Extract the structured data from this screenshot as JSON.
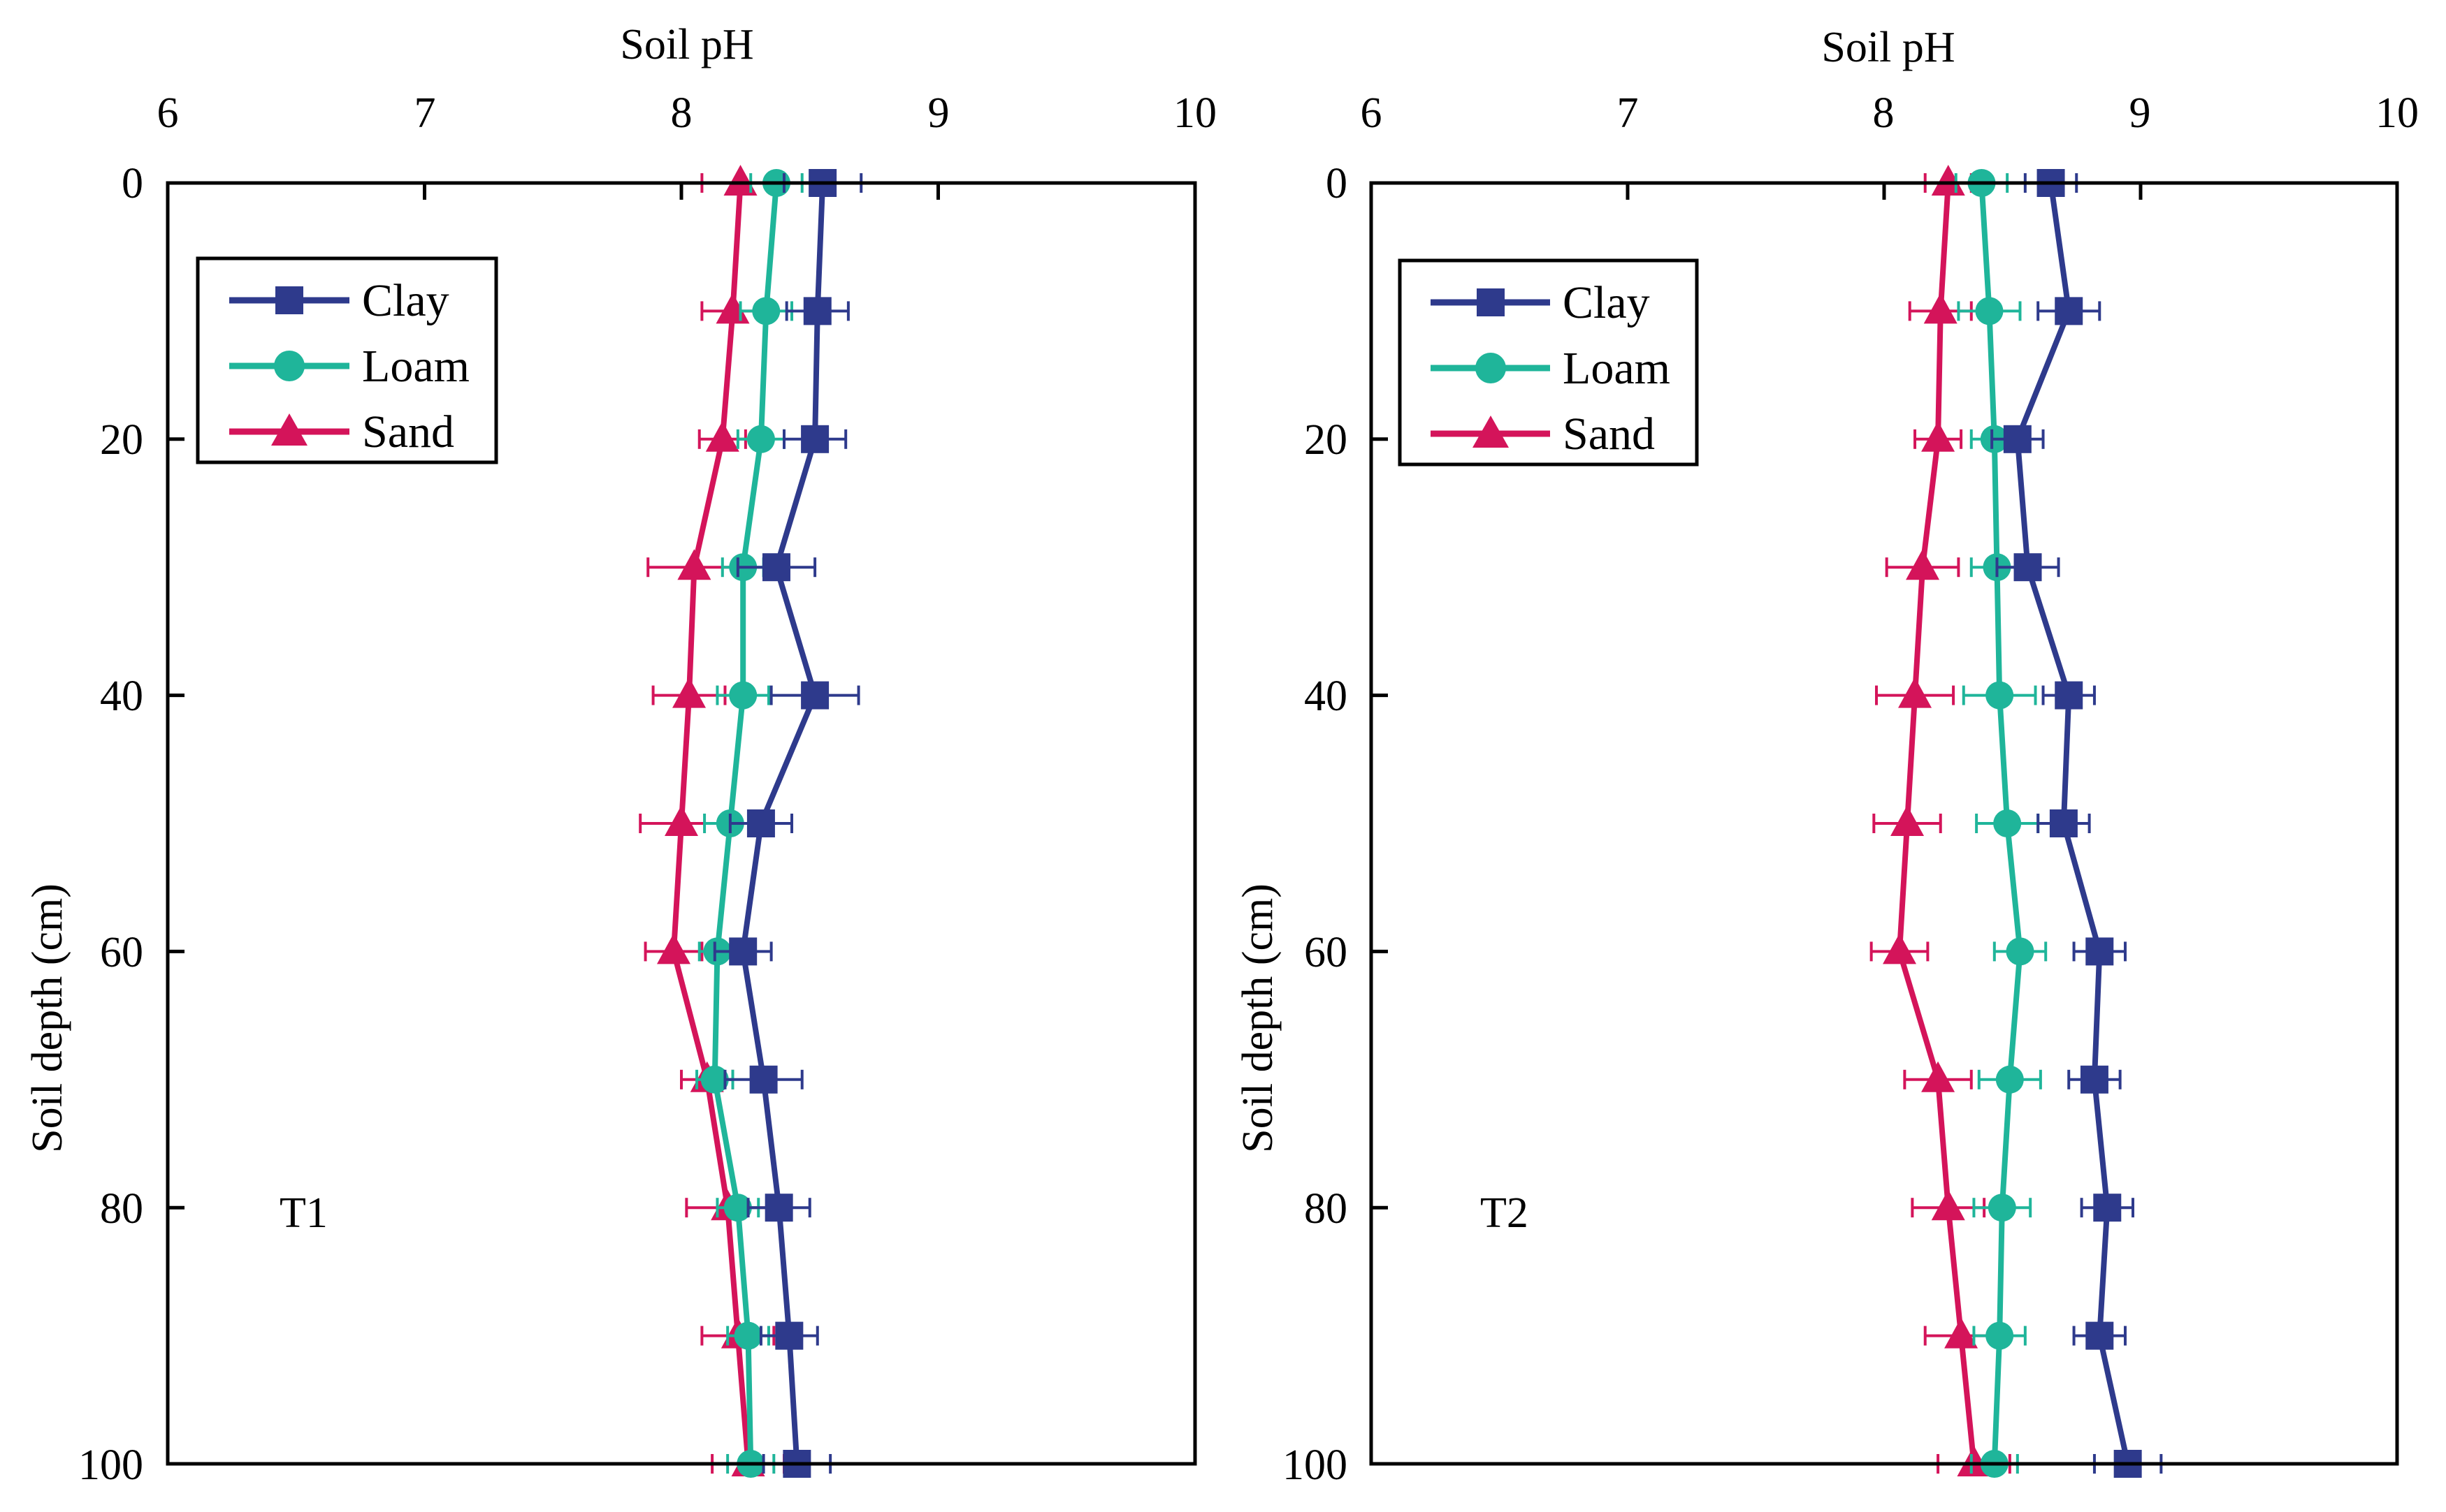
{
  "colors": {
    "Clay": "#2e3a8c",
    "Loam": "#1fb59a",
    "Sand": "#d4145a"
  },
  "chart_data": [
    {
      "type": "line",
      "panel_label": "T1",
      "xlabel": "Soil pH",
      "ylabel": "Soil depth (cm)",
      "xlim": [
        6,
        10
      ],
      "ylim": [
        0,
        100
      ],
      "x_ticks": [
        "6",
        "7",
        "8",
        "9",
        "10"
      ],
      "y_ticks": [
        "0",
        "20",
        "40",
        "60",
        "80",
        "100"
      ],
      "legend": [
        "Clay",
        "Loam",
        "Sand"
      ],
      "legend_position": "top-left",
      "depths": [
        0,
        10,
        20,
        30,
        40,
        50,
        60,
        70,
        80,
        90,
        100
      ],
      "series": [
        {
          "name": "Clay",
          "marker": "square",
          "values": [
            8.55,
            8.53,
            8.52,
            8.37,
            8.52,
            8.31,
            8.24,
            8.32,
            8.38,
            8.42,
            8.45
          ],
          "errors": [
            0.15,
            0.12,
            0.12,
            0.15,
            0.17,
            0.12,
            0.11,
            0.15,
            0.12,
            0.11,
            0.13
          ]
        },
        {
          "name": "Loam",
          "marker": "circle",
          "values": [
            8.37,
            8.33,
            8.31,
            8.24,
            8.24,
            8.19,
            8.14,
            8.13,
            8.22,
            8.26,
            8.27
          ],
          "errors": [
            0.1,
            0.1,
            0.09,
            0.08,
            0.1,
            0.1,
            0.07,
            0.07,
            0.08,
            0.08,
            0.09
          ]
        },
        {
          "name": "Sand",
          "marker": "triangle",
          "values": [
            8.23,
            8.2,
            8.16,
            8.05,
            8.03,
            8.0,
            7.97,
            8.1,
            8.18,
            8.22,
            8.26
          ],
          "errors": [
            0.15,
            0.12,
            0.09,
            0.18,
            0.14,
            0.16,
            0.11,
            0.1,
            0.16,
            0.14,
            0.14
          ]
        }
      ]
    },
    {
      "type": "line",
      "panel_label": "T2",
      "xlabel": "Soil pH",
      "ylabel": "Soil depth (cm)",
      "xlim": [
        6,
        10
      ],
      "ylim": [
        0,
        100
      ],
      "x_ticks": [
        "6",
        "7",
        "8",
        "9",
        "10"
      ],
      "y_ticks": [
        "0",
        "20",
        "40",
        "60",
        "80",
        "100"
      ],
      "legend": [
        "Clay",
        "Loam",
        "Sand"
      ],
      "legend_position": "top-left",
      "depths": [
        0,
        10,
        20,
        30,
        40,
        50,
        60,
        70,
        80,
        90,
        100
      ],
      "series": [
        {
          "name": "Clay",
          "marker": "square",
          "values": [
            8.65,
            8.72,
            8.52,
            8.56,
            8.72,
            8.7,
            8.84,
            8.82,
            8.87,
            8.84,
            8.95
          ],
          "errors": [
            0.1,
            0.12,
            0.1,
            0.12,
            0.1,
            0.1,
            0.1,
            0.1,
            0.1,
            0.1,
            0.13
          ]
        },
        {
          "name": "Loam",
          "marker": "circle",
          "values": [
            8.38,
            8.41,
            8.43,
            8.44,
            8.45,
            8.48,
            8.53,
            8.49,
            8.46,
            8.45,
            8.43
          ],
          "errors": [
            0.1,
            0.12,
            0.09,
            0.1,
            0.14,
            0.12,
            0.1,
            0.12,
            0.11,
            0.1,
            0.09
          ]
        },
        {
          "name": "Sand",
          "marker": "triangle",
          "values": [
            8.25,
            8.22,
            8.21,
            8.15,
            8.12,
            8.09,
            8.06,
            8.21,
            8.25,
            8.3,
            8.35
          ],
          "errors": [
            0.09,
            0.12,
            0.09,
            0.14,
            0.15,
            0.13,
            0.11,
            0.13,
            0.14,
            0.14,
            0.14
          ]
        }
      ]
    }
  ]
}
